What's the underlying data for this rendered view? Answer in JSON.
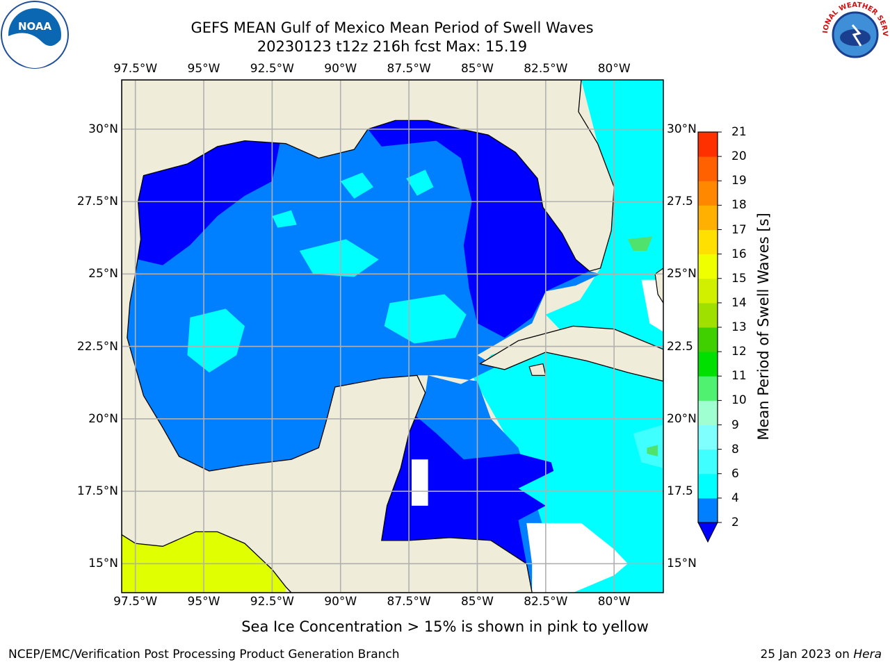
{
  "title_line1": "GEFS MEAN Gulf of Mexico Mean Period of Swell Waves",
  "title_line2": "20230123 t12z 216h fcst   Max: 15.19",
  "map": {
    "lon_ticks": [
      "97.5°W",
      "95°W",
      "92.5°W",
      "90°W",
      "87.5°W",
      "85°W",
      "82.5°W",
      "80°W"
    ],
    "lat_ticks_left": [
      "30°N",
      "27.5°N",
      "25°N",
      "22.5°N",
      "20°N",
      "17.5°N",
      "15°N"
    ],
    "lat_ticks_right": [
      "30°N",
      "27.5",
      "25°N",
      "22.5",
      "20°N",
      "17.5",
      "15°N"
    ],
    "lon_values": [
      -97.5,
      -95,
      -92.5,
      -90,
      -87.5,
      -85,
      -82.5,
      -80
    ],
    "lat_values": [
      30,
      27.5,
      25,
      22.5,
      20,
      17.5,
      15
    ],
    "lon_range": [
      -98,
      -78.2
    ],
    "lat_range": [
      14,
      31.7
    ],
    "grid": true,
    "colors": {
      "land": "#efedd9",
      "swell_2_4": "#007fff",
      "swell_below_2": "#0000ff",
      "swell_4_6": "#00ffff",
      "swell_6_8": "#40ffff",
      "swell_8_9": "#4fe36e",
      "ice_region": "#e0ff00",
      "coast": "#000000",
      "grid": "#b0b0b0"
    }
  },
  "colorbar": {
    "label": "Mean Period of Swell Waves [s]",
    "ticks": [
      "2",
      "4",
      "6",
      "8",
      "9",
      "10",
      "11",
      "12",
      "13",
      "14",
      "15",
      "16",
      "17",
      "18",
      "19",
      "20",
      "21"
    ],
    "colors": [
      "#007fff",
      "#00ffff",
      "#40ffff",
      "#80ffff",
      "#a0ffd0",
      "#50f070",
      "#00e000",
      "#40d000",
      "#a0e000",
      "#d0f000",
      "#f0ff00",
      "#ffe000",
      "#ffb000",
      "#ff8800",
      "#ff6000",
      "#ff3000"
    ],
    "extend_color": "#0000ff"
  },
  "note": "Sea Ice Concentration > 15% is shown in pink to yellow",
  "credit": "NCEP/EMC/Verification Post Processing Product Generation Branch",
  "date": "25 Jan 2023 on",
  "date_host": "Hera",
  "logos": {
    "noaa_text": "NOAA",
    "nws_text": "NATIONAL WEATHER SERVICE"
  }
}
